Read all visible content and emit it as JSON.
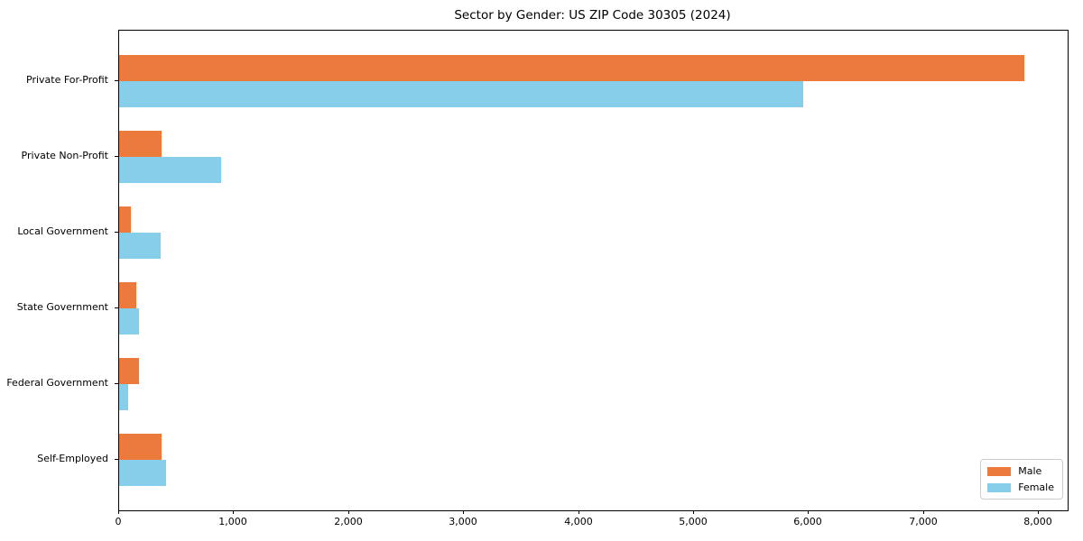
{
  "chart_data": {
    "type": "bar",
    "orientation": "horizontal",
    "title": "Sector by Gender: US ZIP Code 30305 (2024)",
    "categories": [
      "Private For-Profit",
      "Private Non-Profit",
      "Local Government",
      "State Government",
      "Federal Government",
      "Self-Employed"
    ],
    "series": [
      {
        "name": "Male",
        "color": "#eb7a3c",
        "values": [
          7870,
          370,
          100,
          150,
          170,
          370
        ]
      },
      {
        "name": "Female",
        "color": "#87ceeb",
        "values": [
          5950,
          890,
          360,
          175,
          75,
          405
        ]
      }
    ],
    "xlabel": "",
    "ylabel": "",
    "xlim": [
      0,
      8250
    ],
    "xticks": [
      0,
      1000,
      2000,
      3000,
      4000,
      5000,
      6000,
      7000,
      8000
    ],
    "xtick_labels": [
      "0",
      "1,000",
      "2,000",
      "3,000",
      "4,000",
      "5,000",
      "6,000",
      "7,000",
      "8,000"
    ],
    "legend": {
      "position": "lower right",
      "entries": [
        "Male",
        "Female"
      ]
    },
    "grid": false,
    "colors": {
      "male": "#eb7a3c",
      "female": "#87ceeb",
      "axis": "#000000",
      "legend_border": "#cccccc",
      "background": "#ffffff"
    }
  }
}
